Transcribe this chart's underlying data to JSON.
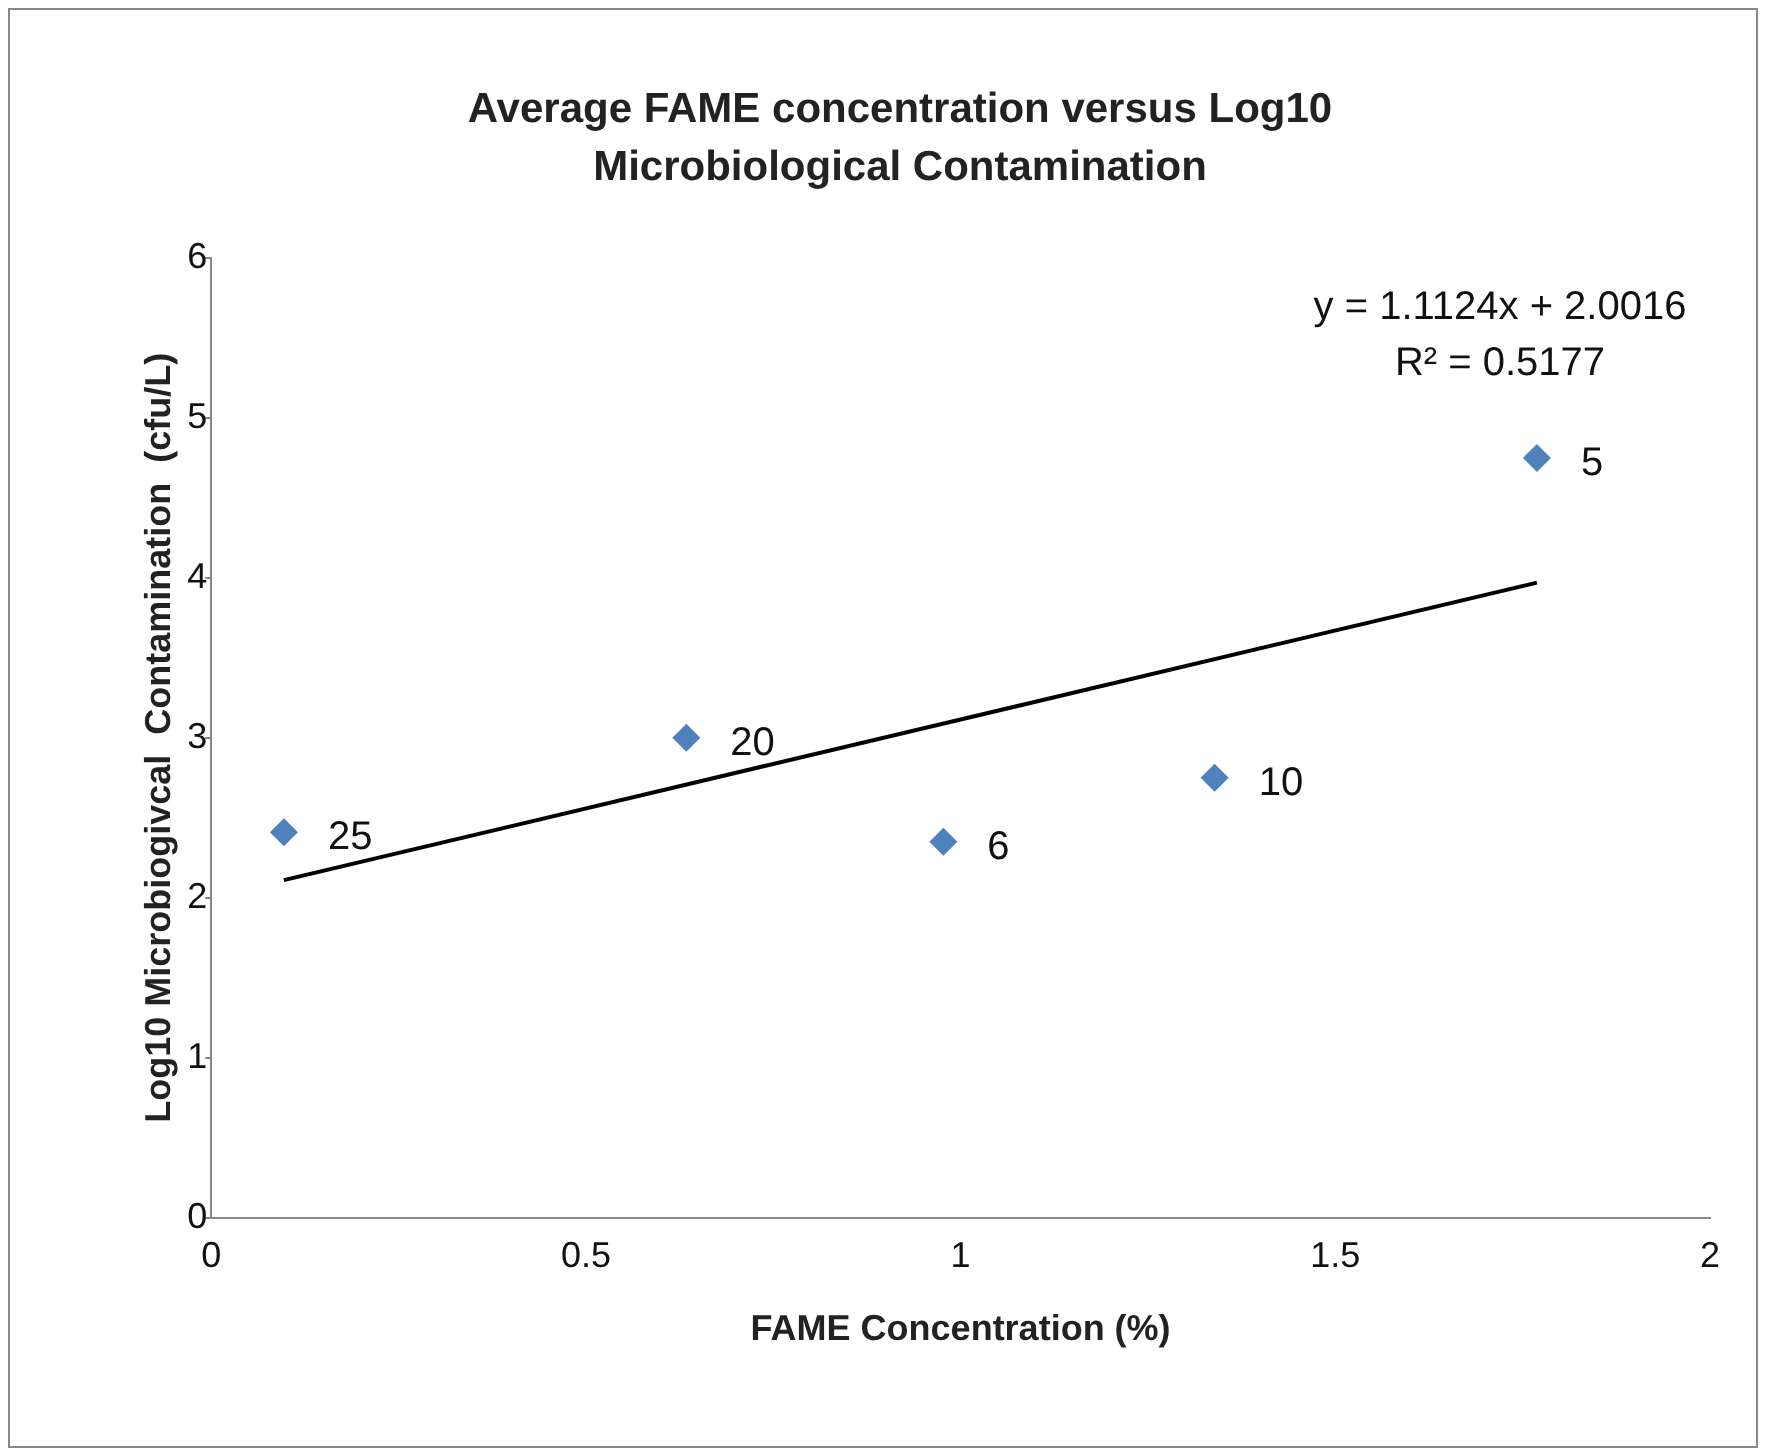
{
  "chart_data": {
    "type": "scatter",
    "title": "Average FAME concentration versus Log10 Microbiological Contamination",
    "xlabel": "FAME Concentration (%)",
    "ylabel": "Log10 Microbiogivcal  Contamination  (cfu/L)",
    "marker": "diamond",
    "grid": false,
    "legend": false,
    "xlim": [
      0,
      2
    ],
    "xticks": [
      0,
      0.5,
      1,
      1.5,
      2
    ],
    "ylim": [
      0,
      6
    ],
    "yticks": [
      0,
      1,
      2,
      3,
      4,
      5,
      6
    ],
    "series": [
      {
        "type": "scatter",
        "color": "#4f81bd",
        "x": [
          0.097,
          0.634,
          0.977,
          1.339,
          1.769
        ],
        "values": [
          2.41,
          3.0,
          2.35,
          2.75,
          4.75
        ]
      },
      {
        "type": "line",
        "color": "#000000",
        "marker": "none",
        "x": [
          0.097,
          1.769
        ],
        "values": [
          2.11,
          3.97
        ]
      }
    ],
    "annotations": [
      {
        "text": "25",
        "x": 0.097,
        "y": 2.41
      },
      {
        "text": "20",
        "x": 0.634,
        "y": 3.0
      },
      {
        "text": "6",
        "x": 0.977,
        "y": 2.35
      },
      {
        "text": "10",
        "x": 1.339,
        "y": 2.75
      },
      {
        "text": "5",
        "x": 1.769,
        "y": 4.75
      },
      "y = 1.1124x + 2.0016",
      "R² = 0.5177"
    ]
  }
}
